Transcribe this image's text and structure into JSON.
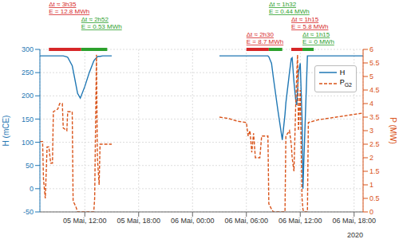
{
  "chart_data": {
    "type": "line",
    "x": [
      7.0,
      7.3,
      7.4,
      7.6,
      7.8,
      8.0,
      8.2,
      8.4,
      8.5,
      9.0,
      9.2,
      9.5,
      9.6,
      10.0,
      10.1,
      10.6,
      10.7,
      11.0,
      11.2,
      11.5,
      12.0,
      12.5,
      13.0,
      13.1,
      13.3,
      13.4,
      13.5,
      13.6,
      13.7,
      14.0,
      15.0,
      20,
      27,
      28,
      29,
      30,
      30.2,
      30.4,
      30.6,
      30.8,
      31,
      31.5,
      31.7,
      32.4,
      32.5,
      32.8,
      33,
      33.5,
      34,
      34.3,
      34.4,
      34.8,
      35,
      35.1,
      35.3,
      35.5,
      35.6,
      35.7,
      35.8,
      36,
      36.2,
      36.3,
      36.4,
      36.8,
      36.9,
      38,
      40,
      42,
      43
    ],
    "xlim": [
      7,
      43
    ],
    "xticks": [
      {
        "value": 12,
        "label": "05 Mai, 12:00"
      },
      {
        "value": 18,
        "label": "05 Mai, 18:00"
      },
      {
        "value": 24,
        "label": "06 Mai, 00:00"
      },
      {
        "value": 30,
        "label": "06 Mai, 06:00"
      },
      {
        "value": 36,
        "label": "06 Mai, 12:00"
      },
      {
        "value": 42,
        "label": "06 Mai, 18:00"
      }
    ],
    "x_label": "2020",
    "y_label": "H (mCE)",
    "y2_label": "P (MW)",
    "ylim": [
      -50,
      300
    ],
    "yticks": [
      -50,
      0,
      50,
      100,
      150,
      200,
      250,
      300
    ],
    "y2lim": [
      0,
      6
    ],
    "y2ticks": [
      0,
      0.5,
      1,
      1.5,
      2,
      2.5,
      3,
      3.5,
      4,
      4.5,
      5,
      5.5,
      6
    ],
    "grid": true,
    "legend": "upper right",
    "series": [
      {
        "name": "H",
        "color": "#1f77b4",
        "line_style": "solid",
        "values": [
          286,
          286,
          286,
          286,
          286,
          286,
          286,
          286,
          286,
          286,
          286,
          286,
          286,
          284,
          283,
          265,
          255,
          225,
          205,
          195,
          220,
          250,
          275,
          278,
          282,
          284,
          285,
          285,
          285,
          286,
          286,
          null,
          286,
          286,
          286,
          286,
          286,
          286,
          286,
          286,
          286,
          286,
          286,
          286,
          284,
          270,
          240,
          170,
          105,
          160,
          185,
          250,
          280,
          282,
          230,
          190,
          180,
          210,
          250,
          270,
          150,
          0,
          60,
          286,
          286,
          286,
          286,
          286,
          286
        ]
      },
      {
        "name": "PG2",
        "color": "#d95319",
        "line_style": "dashed",
        "axis": "y2",
        "values": [
          2.6,
          2.6,
          1.2,
          0.5,
          2.4,
          2.4,
          1.8,
          1.8,
          3.7,
          3.8,
          4.0,
          4.0,
          3.1,
          3.0,
          3.7,
          3.7,
          0.4,
          0.2,
          0.0,
          0.0,
          0.0,
          0.0,
          0.0,
          0.5,
          5.8,
          2.0,
          1.5,
          1.0,
          2.5,
          2.5,
          2.5,
          null,
          3.5,
          3.45,
          3.35,
          3.3,
          2.8,
          3.0,
          2.2,
          2.9,
          2.0,
          2.0,
          2.8,
          2.8,
          0.3,
          0.1,
          0.0,
          0.0,
          0.0,
          0.0,
          2.8,
          3.0,
          2.5,
          2.0,
          1.5,
          4.0,
          5.0,
          5.8,
          3.0,
          4.5,
          0.5,
          0.1,
          0.0,
          0.0,
          3.3,
          3.4,
          3.5,
          3.6,
          3.65
        ]
      }
    ],
    "annotations": [
      {
        "start": 8.0,
        "end": 11.6,
        "color": "#d62728",
        "texts": [
          "Δt ≈ 3h35",
          "E = 12.8 MWh"
        ]
      },
      {
        "start": 11.6,
        "end": 14.5,
        "color": "#2ca02c",
        "texts": [
          "Δt ≈ 2h52",
          "E = 0.53 MWh"
        ]
      },
      {
        "start": 30.0,
        "end": 32.5,
        "color": "#d62728",
        "texts": [
          "Δt ≈ 2h30",
          "E = 8.7 MWh"
        ]
      },
      {
        "start": 32.5,
        "end": 34.0,
        "color": "#2ca02c",
        "texts": [
          "Δt ≈ 1h32",
          "E = 0.44 MWh"
        ]
      },
      {
        "start": 35.0,
        "end": 36.25,
        "color": "#d62728",
        "texts": [
          "Δt ≈ 1h15",
          "E = 5.8 MWh"
        ]
      },
      {
        "start": 36.25,
        "end": 37.5,
        "color": "#2ca02c",
        "texts": [
          "Δt ≈ 1h15",
          "E = 0 MWh"
        ]
      }
    ]
  }
}
